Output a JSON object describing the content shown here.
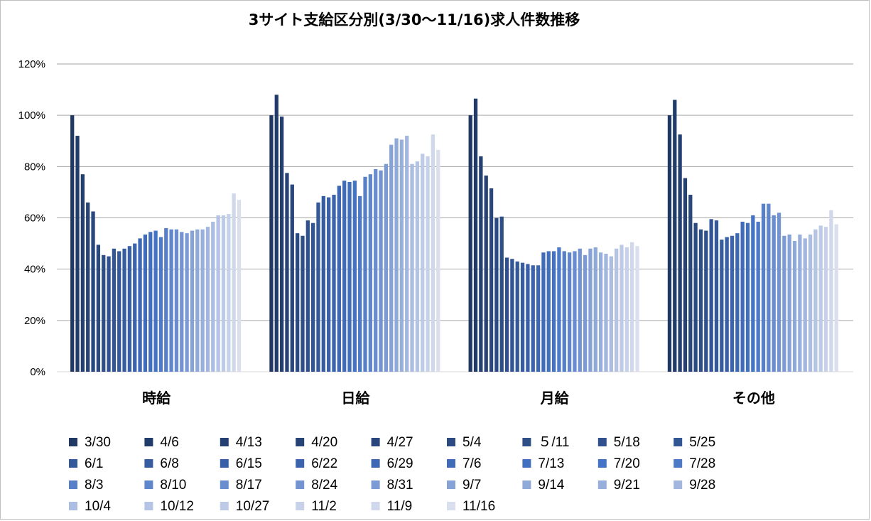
{
  "chart_data": {
    "type": "bar",
    "title": "3サイト支給区分別(3/30～11/16)求人件数推移",
    "xlabel": "",
    "ylabel": "",
    "ylim": [
      0,
      1.2
    ],
    "yticks": [
      "0%",
      "20%",
      "40%",
      "60%",
      "80%",
      "100%",
      "120%"
    ],
    "grid": true,
    "legend_position": "bottom",
    "categories": [
      "時給",
      "日給",
      "月給",
      "その他"
    ],
    "series_color_start": "#203864",
    "series_color_mid": "#4472c4",
    "series_color_end": "#dadfee",
    "series": [
      {
        "name": "3/30",
        "values": [
          1.0,
          1.0,
          1.0,
          1.0
        ]
      },
      {
        "name": "4/6",
        "values": [
          0.92,
          1.08,
          1.065,
          1.06
        ]
      },
      {
        "name": "4/13",
        "values": [
          0.77,
          0.995,
          0.84,
          0.925
        ]
      },
      {
        "name": "4/20",
        "values": [
          0.66,
          0.775,
          0.765,
          0.755
        ]
      },
      {
        "name": "4/27",
        "values": [
          0.625,
          0.73,
          0.715,
          0.69
        ]
      },
      {
        "name": "5/4",
        "values": [
          0.495,
          0.54,
          0.6,
          0.58
        ]
      },
      {
        "name": "５/11",
        "values": [
          0.455,
          0.53,
          0.605,
          0.555
        ]
      },
      {
        "name": "5/18",
        "values": [
          0.45,
          0.59,
          0.445,
          0.55
        ]
      },
      {
        "name": "5/25",
        "values": [
          0.48,
          0.58,
          0.44,
          0.595
        ]
      },
      {
        "name": "6/1",
        "values": [
          0.47,
          0.66,
          0.43,
          0.59
        ]
      },
      {
        "name": "6/8",
        "values": [
          0.48,
          0.685,
          0.425,
          0.515
        ]
      },
      {
        "name": "6/15",
        "values": [
          0.49,
          0.68,
          0.42,
          0.525
        ]
      },
      {
        "name": "6/22",
        "values": [
          0.5,
          0.69,
          0.415,
          0.53
        ]
      },
      {
        "name": "6/29",
        "values": [
          0.52,
          0.725,
          0.415,
          0.54
        ]
      },
      {
        "name": "7/6",
        "values": [
          0.535,
          0.745,
          0.465,
          0.585
        ]
      },
      {
        "name": "7/13",
        "values": [
          0.545,
          0.74,
          0.47,
          0.58
        ]
      },
      {
        "name": "7/20",
        "values": [
          0.55,
          0.745,
          0.47,
          0.61
        ]
      },
      {
        "name": "7/28",
        "values": [
          0.525,
          0.685,
          0.485,
          0.585
        ]
      },
      {
        "name": "8/3",
        "values": [
          0.56,
          0.76,
          0.47,
          0.655
        ]
      },
      {
        "name": "8/10",
        "values": [
          0.555,
          0.77,
          0.465,
          0.655
        ]
      },
      {
        "name": "8/17",
        "values": [
          0.555,
          0.79,
          0.47,
          0.61
        ]
      },
      {
        "name": "8/24",
        "values": [
          0.545,
          0.785,
          0.48,
          0.62
        ]
      },
      {
        "name": "8/31",
        "values": [
          0.54,
          0.81,
          0.455,
          0.53
        ]
      },
      {
        "name": "9/7",
        "values": [
          0.55,
          0.885,
          0.48,
          0.535
        ]
      },
      {
        "name": "9/14",
        "values": [
          0.555,
          0.91,
          0.485,
          0.51
        ]
      },
      {
        "name": "9/21",
        "values": [
          0.555,
          0.905,
          0.465,
          0.535
        ]
      },
      {
        "name": "9/28",
        "values": [
          0.565,
          0.92,
          0.46,
          0.52
        ]
      },
      {
        "name": "10/4",
        "values": [
          0.585,
          0.81,
          0.45,
          0.535
        ]
      },
      {
        "name": "10/12",
        "values": [
          0.61,
          0.82,
          0.48,
          0.555
        ]
      },
      {
        "name": "10/27",
        "values": [
          0.61,
          0.85,
          0.495,
          0.57
        ]
      },
      {
        "name": "11/2",
        "values": [
          0.615,
          0.84,
          0.485,
          0.565
        ]
      },
      {
        "name": "11/9",
        "values": [
          0.695,
          0.925,
          0.505,
          0.63
        ]
      },
      {
        "name": "11/16",
        "values": [
          0.67,
          0.865,
          0.49,
          0.575
        ]
      }
    ]
  }
}
